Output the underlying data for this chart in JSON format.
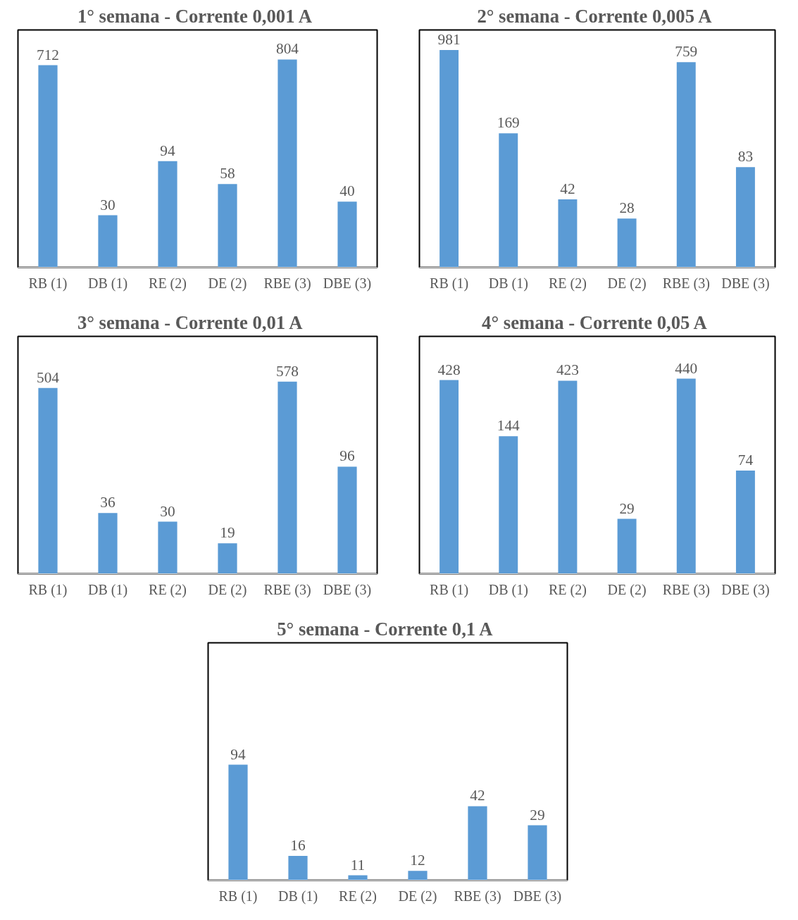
{
  "chart_data": [
    {
      "type": "bar",
      "title": "1° semana  - Corrente 0,001 A",
      "categories": [
        "RB (1)",
        "DB (1)",
        "RE (2)",
        "DE (2)",
        "RBE (3)",
        "DBE (3)"
      ],
      "values": [
        712,
        30,
        94,
        58,
        804,
        40
      ],
      "color": "#5b9bd5",
      "data_labels": true,
      "log": "y",
      "ylim": [
        10,
        1500
      ],
      "tick_labels": "x"
    },
    {
      "type": "bar",
      "title": "2° semana  - Corrente 0,005 A",
      "categories": [
        "RB (1)",
        "DB (1)",
        "RE (2)",
        "DE (2)",
        "RBE (3)",
        "DBE (3)"
      ],
      "values": [
        981,
        169,
        42,
        28,
        759,
        83
      ],
      "color": "#5b9bd5",
      "data_labels": true,
      "log": "y",
      "ylim": [
        10,
        1500
      ],
      "tick_labels": "x"
    },
    {
      "type": "bar",
      "title": "3° semana  -  Corrente  0,01 A",
      "categories": [
        "RB (1)",
        "DB (1)",
        "RE (2)",
        "DE (2)",
        "RBE (3)",
        "DBE (3)"
      ],
      "values": [
        504,
        36,
        30,
        19,
        578,
        96
      ],
      "color": "#5b9bd5",
      "data_labels": true,
      "log": "y",
      "ylim": [
        10,
        1500
      ],
      "tick_labels": "x"
    },
    {
      "type": "bar",
      "title": "4° semana  - Corrente 0,05 A",
      "categories": [
        "RB (1)",
        "DB (1)",
        "RE (2)",
        "DE (2)",
        "RBE (3)",
        "DBE (3)"
      ],
      "values": [
        428,
        144,
        423,
        29,
        440,
        74
      ],
      "color": "#5b9bd5",
      "data_labels": true,
      "log": "y",
      "ylim": [
        10,
        1000
      ],
      "tick_labels": "x"
    },
    {
      "type": "bar",
      "title": "5° semana  - Corrente 0,1 A",
      "categories": [
        "RB (1)",
        "DB (1)",
        "RE (2)",
        "DE (2)",
        "RBE (3)",
        "DBE (3)"
      ],
      "values": [
        94,
        16,
        11,
        12,
        42,
        29
      ],
      "color": "#5b9bd5",
      "data_labels": true,
      "log": "y",
      "ylim": [
        10,
        1000
      ],
      "tick_labels": "x"
    }
  ]
}
